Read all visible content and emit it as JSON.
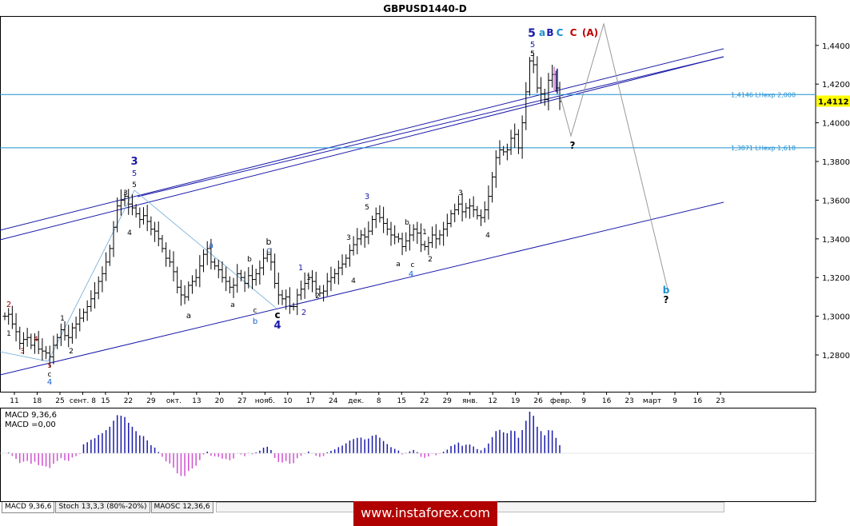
{
  "title": "GBPUSD1440-D",
  "price_labels": [
    "1,4400",
    "1,4200",
    "1,4000",
    "1,3800",
    "1,3600",
    "1,3400",
    "1,3200",
    "1,3000",
    "1,2800"
  ],
  "current_price": "1,4112",
  "levels": [
    {
      "label": "1,4146 LHexp 2,000",
      "value": 1.4146
    },
    {
      "label": "1,3871 LHexp 1,618",
      "value": 1.3871
    }
  ],
  "date_labels": [
    "11",
    "18",
    "25",
    "сент. 8",
    "15",
    "22",
    "29",
    "окт.",
    "13",
    "20",
    "27",
    "нояб.",
    "10",
    "17",
    "24",
    "дек.",
    "8",
    "15",
    "22",
    "29",
    "янв.",
    "12",
    "19",
    "26",
    "февр.",
    "9",
    "16",
    "23",
    "март",
    "9",
    "16",
    "23"
  ],
  "wave_top": [
    {
      "text": "5",
      "color": "#1a1aaa"
    },
    {
      "text": "a",
      "color": "#1e8fd0"
    },
    {
      "text": "B",
      "color": "#1a1aaa"
    },
    {
      "text": "C",
      "color": "#1e8fd0"
    },
    {
      "text": "C",
      "color": "#c00000"
    },
    {
      "text": "(A)",
      "color": "#c00000"
    }
  ],
  "wave_labels": [
    {
      "t": "5",
      "c": "#000"
    },
    {
      "t": "2",
      "c": "#8b0000"
    },
    {
      "t": "1",
      "c": "#000"
    },
    {
      "t": "3",
      "c": "#8b0000"
    },
    {
      "t": "4",
      "c": "#8b0000"
    },
    {
      "t": "5",
      "c": "#8b0000"
    },
    {
      "t": "c",
      "c": "#000"
    },
    {
      "t": "4",
      "c": "#1a5fd0"
    },
    {
      "t": "1",
      "c": "#000"
    },
    {
      "t": "2",
      "c": "#000"
    },
    {
      "t": "3",
      "c": "#1a1aaa"
    },
    {
      "t": "5",
      "c": "#1a1aaa"
    },
    {
      "t": "3",
      "c": "#000"
    },
    {
      "t": "5",
      "c": "#000"
    },
    {
      "t": "4",
      "c": "#000"
    },
    {
      "t": "a",
      "c": "#1a5fd0"
    },
    {
      "t": "a",
      "c": "#000"
    },
    {
      "t": "b",
      "c": "#000"
    },
    {
      "t": "a",
      "c": "#000"
    },
    {
      "t": "c",
      "c": "#000"
    },
    {
      "t": "b",
      "c": "#1a5fd0"
    },
    {
      "t": "b",
      "c": "#000"
    },
    {
      "t": "c",
      "c": "#1a5fd0"
    },
    {
      "t": "c",
      "c": "#000"
    },
    {
      "t": "4",
      "c": "#1a1aaa"
    },
    {
      "t": "1",
      "c": "#1a1aaa"
    },
    {
      "t": "1",
      "c": "#000"
    },
    {
      "t": "2",
      "c": "#000"
    },
    {
      "t": "2",
      "c": "#1a1aaa"
    },
    {
      "t": "3",
      "c": "#000"
    },
    {
      "t": "4",
      "c": "#000"
    },
    {
      "t": "3",
      "c": "#1a1aaa"
    },
    {
      "t": "5",
      "c": "#000"
    },
    {
      "t": "b",
      "c": "#000"
    },
    {
      "t": "1",
      "c": "#000"
    },
    {
      "t": "a",
      "c": "#000"
    },
    {
      "t": "c",
      "c": "#000"
    },
    {
      "t": "2",
      "c": "#000"
    },
    {
      "t": "4",
      "c": "#1a5fd0"
    },
    {
      "t": "3",
      "c": "#000"
    },
    {
      "t": "4",
      "c": "#000"
    },
    {
      "t": "5",
      "c": "#000"
    },
    {
      "t": "?",
      "c": "#000"
    },
    {
      "t": "b",
      "c": "#1e8fd0"
    },
    {
      "t": "?",
      "c": "#000"
    }
  ],
  "indicator": {
    "label1": "MACD 9,36,6",
    "label2": "MACD =0,00"
  },
  "tabs": [
    "MACD 9,36,6",
    "Stoch 13,3,3 (80%-20%)",
    "MAOSC 12,36,6"
  ],
  "watermark": "www.instaforex.com",
  "chart_data": {
    "type": "candlestick",
    "symbol": "GBPUSD",
    "timeframe": "D1",
    "ylim": [
      1.27,
      1.455
    ],
    "y_ticks": [
      1.28,
      1.3,
      1.32,
      1.34,
      1.36,
      1.38,
      1.4,
      1.42,
      1.44
    ],
    "close_series": [
      1.3,
      1.301,
      1.296,
      1.292,
      1.286,
      1.288,
      1.289,
      1.285,
      1.288,
      1.283,
      1.282,
      1.281,
      1.279,
      1.285,
      1.289,
      1.293,
      1.29,
      1.289,
      1.294,
      1.296,
      1.299,
      1.302,
      1.305,
      1.309,
      1.312,
      1.318,
      1.322,
      1.328,
      1.335,
      1.346,
      1.357,
      1.36,
      1.362,
      1.358,
      1.356,
      1.353,
      1.35,
      1.352,
      1.349,
      1.345,
      1.344,
      1.34,
      1.335,
      1.33,
      1.328,
      1.323,
      1.315,
      1.311,
      1.31,
      1.316,
      1.318,
      1.32,
      1.326,
      1.332,
      1.335,
      1.328,
      1.326,
      1.324,
      1.32,
      1.318,
      1.315,
      1.316,
      1.322,
      1.32,
      1.317,
      1.321,
      1.319,
      1.322,
      1.325,
      1.33,
      1.332,
      1.328,
      1.317,
      1.311,
      1.309,
      1.31,
      1.305,
      1.305,
      1.311,
      1.314,
      1.317,
      1.32,
      1.318,
      1.314,
      1.312,
      1.313,
      1.318,
      1.32,
      1.322,
      1.325,
      1.327,
      1.33,
      1.334,
      1.337,
      1.34,
      1.342,
      1.341,
      1.344,
      1.35,
      1.353,
      1.351,
      1.348,
      1.345,
      1.342,
      1.341,
      1.34,
      1.336,
      1.339,
      1.342,
      1.345,
      1.343,
      1.337,
      1.336,
      1.338,
      1.342,
      1.34,
      1.342,
      1.345,
      1.348,
      1.353,
      1.355,
      1.358,
      1.354,
      1.356,
      1.357,
      1.355,
      1.352,
      1.351,
      1.355,
      1.362,
      1.372,
      1.382,
      1.386,
      1.385,
      1.386,
      1.392,
      1.394,
      1.387,
      1.4,
      1.416,
      1.432,
      1.43,
      1.418,
      1.415,
      1.412,
      1.422,
      1.425,
      1.418,
      1.411
    ],
    "levels": [
      {
        "name": "LHexp 2,000",
        "value": 1.4146
      },
      {
        "name": "LHexp 1,618",
        "value": 1.3871
      }
    ],
    "current": 1.4112,
    "forecast_path": [
      1.4112,
      1.393,
      1.452,
      1.318
    ],
    "macd": {
      "name": "MACD 9,36,6",
      "current": 0.0
    }
  }
}
